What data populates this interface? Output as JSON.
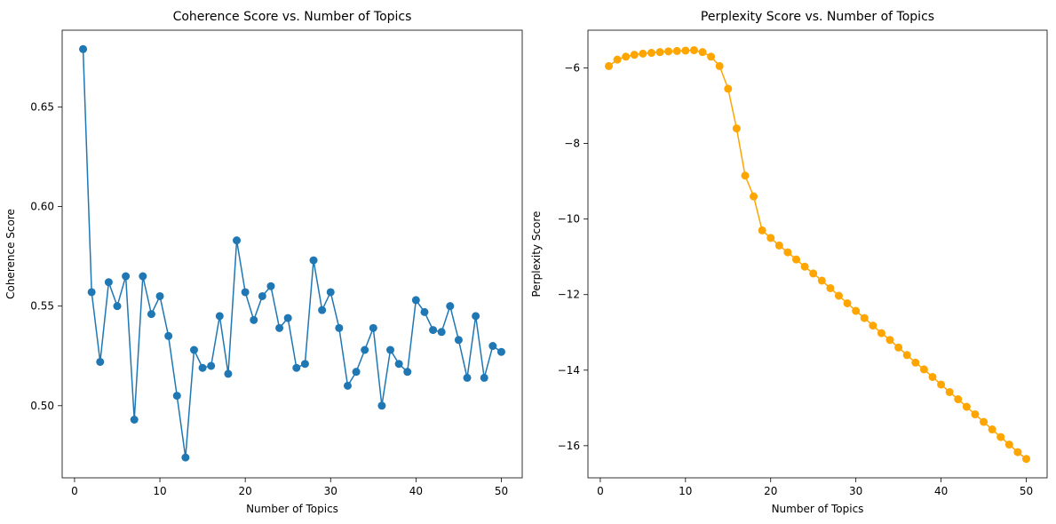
{
  "chart_data": [
    {
      "type": "line",
      "title": "Coherence Score vs. Number of Topics",
      "xlabel": "Number of Topics",
      "ylabel": "Coherence Score",
      "xlim": [
        -1.45,
        52.45
      ],
      "ylim": [
        0.4638,
        0.6885
      ],
      "xticks": [
        0,
        10,
        20,
        30,
        40,
        50
      ],
      "yticks": [
        0.5,
        0.55,
        0.6,
        0.65
      ],
      "ytick_labels": [
        "0.50",
        "0.55",
        "0.60",
        "0.65"
      ],
      "grid": false,
      "legend": "none",
      "series": [
        {
          "color": "#1f77b4",
          "marker": "circle",
          "x": [
            1,
            2,
            3,
            4,
            5,
            6,
            7,
            8,
            9,
            10,
            11,
            12,
            13,
            14,
            15,
            16,
            17,
            18,
            19,
            20,
            21,
            22,
            23,
            24,
            25,
            26,
            27,
            28,
            29,
            30,
            31,
            32,
            33,
            34,
            35,
            36,
            37,
            38,
            39,
            40,
            41,
            42,
            43,
            44,
            45,
            46,
            47,
            48,
            49,
            50
          ],
          "values": [
            0.679,
            0.557,
            0.522,
            0.562,
            0.55,
            0.565,
            0.493,
            0.565,
            0.546,
            0.555,
            0.535,
            0.505,
            0.474,
            0.528,
            0.519,
            0.52,
            0.545,
            0.516,
            0.583,
            0.557,
            0.543,
            0.555,
            0.56,
            0.539,
            0.544,
            0.519,
            0.521,
            0.573,
            0.548,
            0.557,
            0.539,
            0.51,
            0.517,
            0.528,
            0.539,
            0.5,
            0.528,
            0.521,
            0.517,
            0.553,
            0.547,
            0.538,
            0.537,
            0.55,
            0.533,
            0.514,
            0.545,
            0.514,
            0.53,
            0.527
          ]
        }
      ]
    },
    {
      "type": "line",
      "title": "Perplexity Score vs. Number of Topics",
      "xlabel": "Number of Topics",
      "ylabel": "Perplexity Score",
      "xlim": [
        -1.45,
        52.45
      ],
      "ylim": [
        -16.85,
        -5.0
      ],
      "xticks": [
        0,
        10,
        20,
        30,
        40,
        50
      ],
      "yticks": [
        -16,
        -14,
        -12,
        -10,
        -8,
        -6
      ],
      "ytick_labels": [
        "−16",
        "−14",
        "−12",
        "−10",
        "−8",
        "−6"
      ],
      "grid": false,
      "legend": "none",
      "series": [
        {
          "color": "#ffa500",
          "marker": "circle",
          "x": [
            1,
            2,
            3,
            4,
            5,
            6,
            7,
            8,
            9,
            10,
            11,
            12,
            13,
            14,
            15,
            16,
            17,
            18,
            19,
            20,
            21,
            22,
            23,
            24,
            25,
            26,
            27,
            28,
            29,
            30,
            31,
            32,
            33,
            34,
            35,
            36,
            37,
            38,
            39,
            40,
            41,
            42,
            43,
            44,
            45,
            46,
            47,
            48,
            49,
            50
          ],
          "values": [
            -5.95,
            -5.78,
            -5.7,
            -5.65,
            -5.62,
            -5.6,
            -5.58,
            -5.56,
            -5.55,
            -5.54,
            -5.53,
            -5.58,
            -5.7,
            -5.95,
            -6.55,
            -7.6,
            -8.85,
            -9.4,
            -10.3,
            -10.5,
            -10.7,
            -10.88,
            -11.07,
            -11.26,
            -11.44,
            -11.63,
            -11.83,
            -12.03,
            -12.23,
            -12.43,
            -12.62,
            -12.82,
            -13.02,
            -13.2,
            -13.4,
            -13.6,
            -13.8,
            -13.98,
            -14.18,
            -14.38,
            -14.58,
            -14.77,
            -14.97,
            -15.17,
            -15.37,
            -15.57,
            -15.77,
            -15.97,
            -16.17,
            -16.35
          ]
        }
      ]
    }
  ]
}
